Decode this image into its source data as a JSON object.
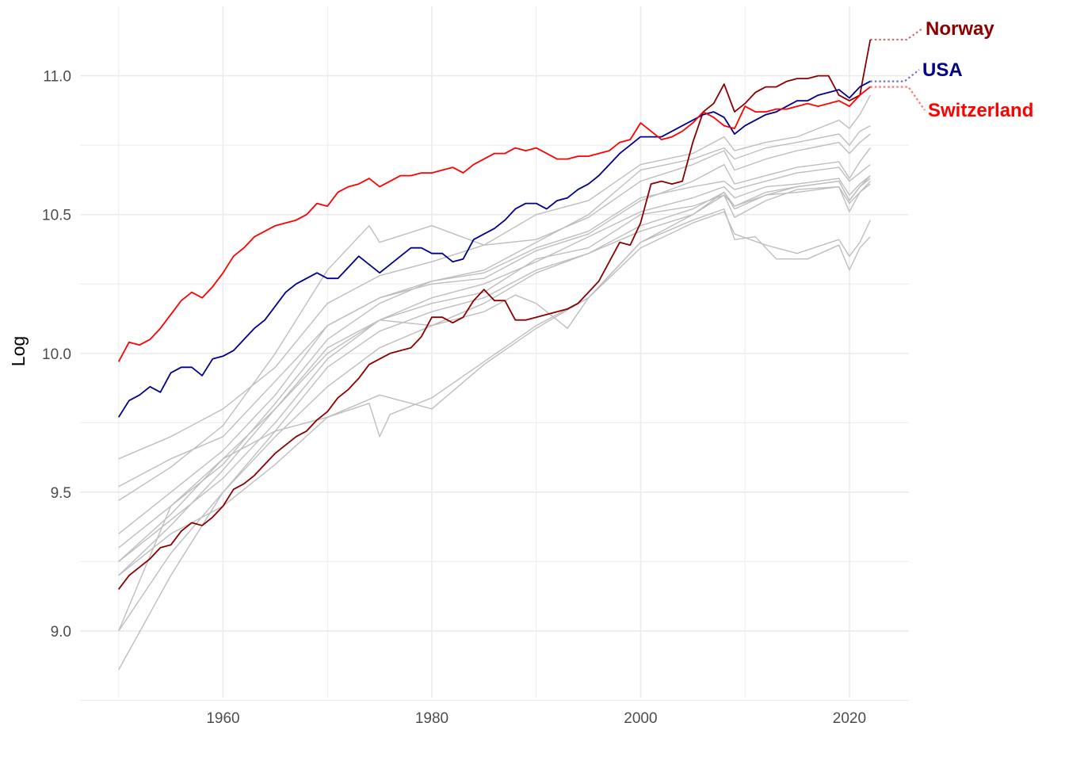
{
  "chart_data": {
    "type": "line",
    "title": "",
    "xlabel": "",
    "ylabel": "Log",
    "xlim": [
      1946.3,
      2025.7
    ],
    "ylim": [
      8.76,
      11.25
    ],
    "x_ticks": [
      1960,
      1980,
      2000,
      2020
    ],
    "y_ticks": [
      "9.0",
      "9.5",
      "10.0",
      "10.5",
      "11.0"
    ],
    "x_minor_ticks": [
      1950,
      1970,
      1990,
      2010
    ],
    "y_minor_ticks": [
      8.75,
      9.25,
      9.75,
      10.25,
      10.75
    ],
    "grid": true,
    "legend": "none",
    "colors": {
      "background": "#ffffff",
      "grid": "#ebebeb",
      "other_countries": "#bebebe",
      "Norway": "#8b0000",
      "USA": "#00008b",
      "Switzerland": "#ff0000"
    },
    "highlighted_series": [
      {
        "name": "Norway",
        "color": "#8b0000",
        "x": [
          1950,
          1951,
          1952,
          1953,
          1954,
          1955,
          1956,
          1957,
          1958,
          1959,
          1960,
          1961,
          1962,
          1963,
          1964,
          1965,
          1966,
          1967,
          1968,
          1969,
          1970,
          1971,
          1972,
          1973,
          1974,
          1975,
          1976,
          1977,
          1978,
          1979,
          1980,
          1981,
          1982,
          1983,
          1984,
          1985,
          1986,
          1987,
          1988,
          1989,
          1990,
          1991,
          1992,
          1993,
          1994,
          1995,
          1996,
          1997,
          1998,
          1999,
          2000,
          2001,
          2002,
          2003,
          2004,
          2005,
          2006,
          2007,
          2008,
          2009,
          2010,
          2011,
          2012,
          2013,
          2014,
          2015,
          2016,
          2017,
          2018,
          2019,
          2020,
          2021,
          2022
        ],
        "values": [
          9.15,
          9.2,
          9.23,
          9.26,
          9.3,
          9.31,
          9.36,
          9.39,
          9.38,
          9.41,
          9.45,
          9.51,
          9.53,
          9.56,
          9.6,
          9.64,
          9.67,
          9.7,
          9.72,
          9.76,
          9.79,
          9.84,
          9.87,
          9.91,
          9.96,
          9.98,
          10.0,
          10.01,
          10.02,
          10.06,
          10.13,
          10.13,
          10.11,
          10.13,
          10.19,
          10.23,
          10.19,
          10.19,
          10.12,
          10.12,
          10.13,
          10.14,
          10.15,
          10.16,
          10.18,
          10.22,
          10.26,
          10.33,
          10.4,
          10.39,
          10.47,
          10.61,
          10.62,
          10.61,
          10.62,
          10.76,
          10.87,
          10.9,
          10.97,
          10.87,
          10.9,
          10.94,
          10.96,
          10.96,
          10.98,
          10.99,
          10.99,
          11.0,
          11.0,
          10.93,
          10.91,
          10.93,
          11.13
        ]
      },
      {
        "name": "USA",
        "color": "#00008b",
        "x": [
          1950,
          1951,
          1952,
          1953,
          1954,
          1955,
          1956,
          1957,
          1958,
          1959,
          1960,
          1961,
          1962,
          1963,
          1964,
          1965,
          1966,
          1967,
          1968,
          1969,
          1970,
          1971,
          1972,
          1973,
          1974,
          1975,
          1976,
          1977,
          1978,
          1979,
          1980,
          1981,
          1982,
          1983,
          1984,
          1985,
          1986,
          1987,
          1988,
          1989,
          1990,
          1991,
          1992,
          1993,
          1994,
          1995,
          1996,
          1997,
          1998,
          1999,
          2000,
          2001,
          2002,
          2003,
          2004,
          2005,
          2006,
          2007,
          2008,
          2009,
          2010,
          2011,
          2012,
          2013,
          2014,
          2015,
          2016,
          2017,
          2018,
          2019,
          2020,
          2021,
          2022
        ],
        "values": [
          9.77,
          9.83,
          9.85,
          9.88,
          9.86,
          9.93,
          9.95,
          9.95,
          9.92,
          9.98,
          9.99,
          10.01,
          10.05,
          10.09,
          10.12,
          10.17,
          10.22,
          10.25,
          10.27,
          10.29,
          10.27,
          10.27,
          10.31,
          10.35,
          10.32,
          10.29,
          10.32,
          10.35,
          10.38,
          10.38,
          10.36,
          10.36,
          10.33,
          10.34,
          10.41,
          10.43,
          10.45,
          10.48,
          10.52,
          10.54,
          10.54,
          10.52,
          10.55,
          10.56,
          10.59,
          10.61,
          10.64,
          10.68,
          10.72,
          10.75,
          10.78,
          10.78,
          10.78,
          10.8,
          10.82,
          10.84,
          10.86,
          10.87,
          10.85,
          10.79,
          10.82,
          10.84,
          10.86,
          10.87,
          10.89,
          10.91,
          10.91,
          10.93,
          10.94,
          10.95,
          10.92,
          10.96,
          10.98
        ]
      },
      {
        "name": "Switzerland",
        "color": "#ff0000",
        "x": [
          1950,
          1951,
          1952,
          1953,
          1954,
          1955,
          1956,
          1957,
          1958,
          1959,
          1960,
          1961,
          1962,
          1963,
          1964,
          1965,
          1966,
          1967,
          1968,
          1969,
          1970,
          1971,
          1972,
          1973,
          1974,
          1975,
          1976,
          1977,
          1978,
          1979,
          1980,
          1981,
          1982,
          1983,
          1984,
          1985,
          1986,
          1987,
          1988,
          1989,
          1990,
          1991,
          1992,
          1993,
          1994,
          1995,
          1996,
          1997,
          1998,
          1999,
          2000,
          2001,
          2002,
          2003,
          2004,
          2005,
          2006,
          2007,
          2008,
          2009,
          2010,
          2011,
          2012,
          2013,
          2014,
          2015,
          2016,
          2017,
          2018,
          2019,
          2020,
          2021,
          2022
        ],
        "values": [
          9.97,
          10.04,
          10.03,
          10.05,
          10.09,
          10.14,
          10.19,
          10.22,
          10.2,
          10.24,
          10.29,
          10.35,
          10.38,
          10.42,
          10.44,
          10.46,
          10.47,
          10.48,
          10.5,
          10.54,
          10.53,
          10.58,
          10.6,
          10.61,
          10.63,
          10.6,
          10.62,
          10.64,
          10.64,
          10.65,
          10.65,
          10.66,
          10.67,
          10.65,
          10.68,
          10.7,
          10.72,
          10.72,
          10.74,
          10.73,
          10.74,
          10.72,
          10.7,
          10.7,
          10.71,
          10.71,
          10.72,
          10.73,
          10.76,
          10.77,
          10.83,
          10.8,
          10.77,
          10.78,
          10.8,
          10.83,
          10.87,
          10.85,
          10.82,
          10.81,
          10.89,
          10.87,
          10.87,
          10.88,
          10.88,
          10.89,
          10.9,
          10.89,
          10.9,
          10.91,
          10.89,
          10.93,
          10.96
        ]
      }
    ],
    "background_series": [
      {
        "x": [
          1950,
          1955,
          1960,
          1965,
          1970,
          1975,
          1980,
          1985,
          1990,
          1995,
          2000,
          2005,
          2008,
          2009,
          2012,
          2015,
          2019,
          2020,
          2021,
          2022
        ],
        "values": [
          9.62,
          9.7,
          9.8,
          9.95,
          10.18,
          10.28,
          10.33,
          10.39,
          10.5,
          10.55,
          10.68,
          10.72,
          10.78,
          10.73,
          10.76,
          10.78,
          10.84,
          10.81,
          10.86,
          10.93
        ]
      },
      {
        "x": [
          1950,
          1955,
          1960,
          1965,
          1970,
          1975,
          1980,
          1985,
          1990,
          1995,
          2000,
          2005,
          2008,
          2009,
          2012,
          2015,
          2019,
          2020,
          2021,
          2022
        ],
        "values": [
          9.52,
          9.62,
          9.7,
          9.9,
          10.1,
          10.2,
          10.26,
          10.3,
          10.4,
          10.5,
          10.66,
          10.7,
          10.74,
          10.7,
          10.74,
          10.76,
          10.79,
          10.75,
          10.8,
          10.82
        ]
      },
      {
        "x": [
          1950,
          1955,
          1960,
          1965,
          1970,
          1974,
          1975,
          1980,
          1985,
          1990,
          1995,
          2000,
          2005,
          2008,
          2009,
          2012,
          2015,
          2019,
          2020,
          2021,
          2022
        ],
        "values": [
          9.47,
          9.59,
          9.74,
          10.0,
          10.3,
          10.46,
          10.4,
          10.46,
          10.39,
          10.41,
          10.49,
          10.62,
          10.68,
          10.73,
          10.66,
          10.7,
          10.73,
          10.76,
          10.72,
          10.76,
          10.79
        ]
      },
      {
        "x": [
          1950,
          1955,
          1960,
          1965,
          1970,
          1975,
          1980,
          1985,
          1990,
          1995,
          2000,
          2005,
          2008,
          2009,
          2012,
          2015,
          2019,
          2020,
          2021,
          2022
        ],
        "values": [
          9.35,
          9.5,
          9.65,
          9.85,
          10.1,
          10.2,
          10.25,
          10.27,
          10.37,
          10.43,
          10.55,
          10.62,
          10.68,
          10.61,
          10.64,
          10.67,
          10.69,
          10.63,
          10.69,
          10.74
        ]
      },
      {
        "x": [
          1950,
          1955,
          1960,
          1965,
          1970,
          1975,
          1980,
          1985,
          1990,
          1995,
          2000,
          2005,
          2008,
          2009,
          2012,
          2015,
          2019,
          2020,
          2021,
          2022
        ],
        "values": [
          9.3,
          9.45,
          9.6,
          9.82,
          10.05,
          10.18,
          10.26,
          10.29,
          10.38,
          10.44,
          10.56,
          10.6,
          10.62,
          10.59,
          10.62,
          10.65,
          10.67,
          10.62,
          10.65,
          10.68
        ]
      },
      {
        "x": [
          1950,
          1955,
          1960,
          1965,
          1970,
          1975,
          1980,
          1985,
          1990,
          1995,
          2000,
          2005,
          2008,
          2009,
          2012,
          2015,
          2019,
          2020,
          2021,
          2022
        ],
        "values": [
          9.25,
          9.4,
          9.55,
          9.75,
          9.98,
          10.12,
          10.2,
          10.25,
          10.33,
          10.42,
          10.51,
          10.56,
          10.6,
          10.56,
          10.6,
          10.61,
          10.63,
          10.57,
          10.61,
          10.64
        ]
      },
      {
        "x": [
          1950,
          1955,
          1960,
          1965,
          1970,
          1975,
          1980,
          1985,
          1990,
          1995,
          2000,
          2005,
          2008,
          2009,
          2012,
          2015,
          2019,
          2020,
          2021,
          2022
        ],
        "values": [
          9.2,
          9.38,
          9.58,
          9.8,
          10.02,
          10.12,
          10.18,
          10.22,
          10.34,
          10.38,
          10.5,
          10.53,
          10.57,
          10.53,
          10.57,
          10.58,
          10.6,
          10.51,
          10.58,
          10.61
        ]
      },
      {
        "x": [
          1950,
          1955,
          1960,
          1965,
          1970,
          1975,
          1980,
          1985,
          1990,
          1995,
          2000,
          2005,
          2008,
          2009,
          2012,
          2015,
          2019,
          2020,
          2021,
          2022
        ],
        "values": [
          9.0,
          9.28,
          9.5,
          9.72,
          9.95,
          10.08,
          10.15,
          10.2,
          10.3,
          10.36,
          10.46,
          10.52,
          10.58,
          10.53,
          10.58,
          10.6,
          10.62,
          10.55,
          10.6,
          10.64
        ]
      },
      {
        "x": [
          1950,
          1955,
          1960,
          1965,
          1970,
          1975,
          1980,
          1985,
          1990,
          1995,
          2000,
          2005,
          2008,
          2009,
          2012,
          2015,
          2019,
          2020,
          2021,
          2022
        ],
        "values": [
          8.86,
          9.2,
          9.5,
          9.7,
          9.88,
          10.02,
          10.1,
          10.18,
          10.29,
          10.36,
          10.44,
          10.5,
          10.58,
          10.52,
          10.57,
          10.6,
          10.62,
          10.55,
          10.6,
          10.63
        ]
      },
      {
        "x": [
          1950,
          1955,
          1960,
          1965,
          1970,
          1975,
          1980,
          1985,
          1988,
          1990,
          1993,
          1995,
          2000,
          2005,
          2008,
          2009,
          2012,
          2015,
          2019,
          2020,
          2021,
          2022
        ],
        "values": [
          9.25,
          9.42,
          9.62,
          9.8,
          10.0,
          10.12,
          10.1,
          10.15,
          10.21,
          10.18,
          10.09,
          10.2,
          10.4,
          10.5,
          10.57,
          10.49,
          10.55,
          10.59,
          10.6,
          10.54,
          10.58,
          10.62
        ]
      },
      {
        "x": [
          1950,
          1955,
          1960,
          1965,
          1970,
          1975,
          1980,
          1985,
          1990,
          1995,
          2000,
          2005,
          2008,
          2009,
          2012,
          2015,
          2019,
          2020,
          2021,
          2022
        ],
        "values": [
          9.2,
          9.35,
          9.45,
          9.6,
          9.77,
          9.85,
          9.8,
          9.96,
          10.09,
          10.2,
          10.38,
          10.47,
          10.51,
          10.43,
          10.39,
          10.36,
          10.41,
          10.35,
          10.4,
          10.48
        ]
      },
      {
        "x": [
          1950,
          1955,
          1960,
          1965,
          1970,
          1974,
          1975,
          1976,
          1980,
          1985,
          1990,
          1995,
          2000,
          2005,
          2008,
          2009,
          2011,
          2013,
          2016,
          2019,
          2020,
          2021,
          2022
        ],
        "values": [
          9.0,
          9.45,
          9.62,
          9.72,
          9.77,
          9.82,
          9.7,
          9.78,
          9.84,
          9.97,
          10.1,
          10.2,
          10.4,
          10.48,
          10.52,
          10.41,
          10.42,
          10.34,
          10.34,
          10.39,
          10.3,
          10.38,
          10.42
        ]
      }
    ],
    "annotations": [
      {
        "series": "Norway",
        "text": "Norway",
        "color": "#8b0000"
      },
      {
        "series": "USA",
        "text": "USA",
        "color": "#00008b"
      },
      {
        "series": "Switzerland",
        "text": "Switzerland",
        "color": "#ff0000"
      }
    ]
  }
}
